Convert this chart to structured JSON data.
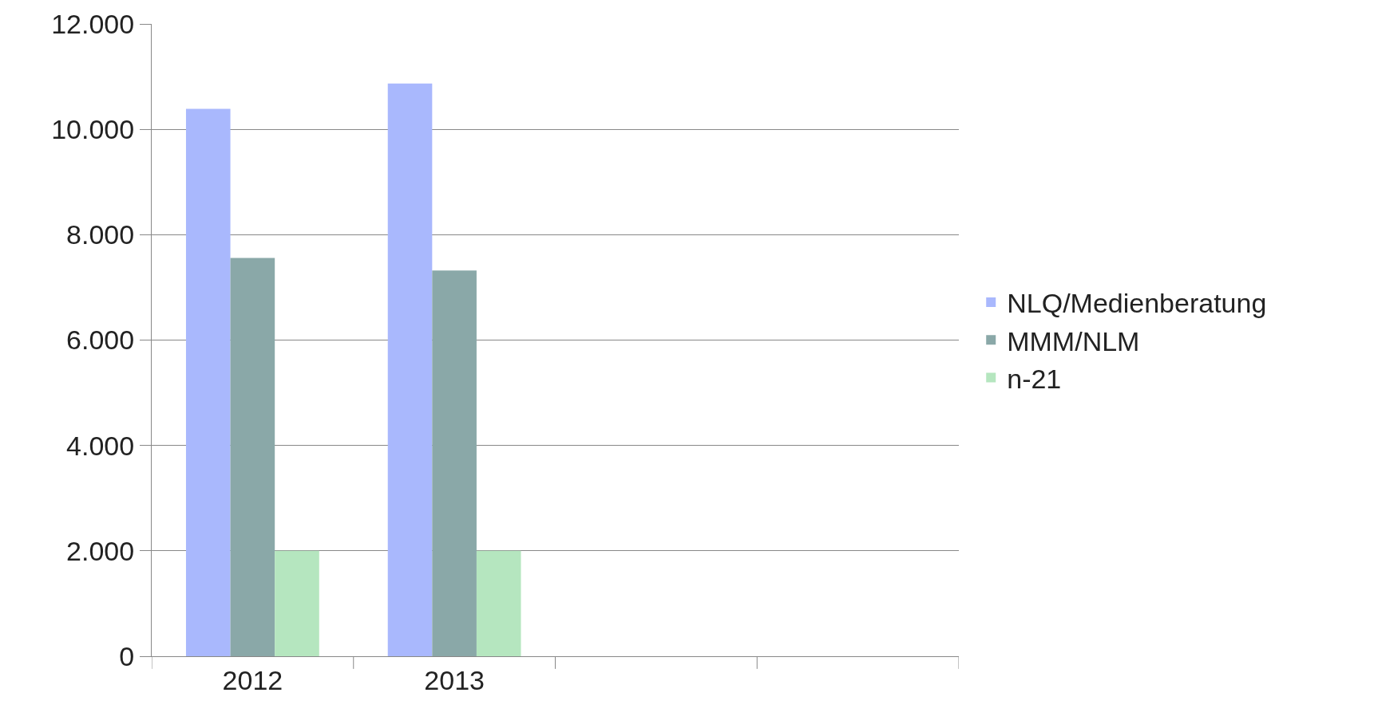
{
  "chart_data": {
    "type": "bar",
    "categories": [
      "2012",
      "2013",
      null,
      null
    ],
    "series": [
      {
        "name": "NLQ/Medienberatung",
        "color": "#a9b8fd",
        "values": [
          10390,
          10870,
          null,
          null
        ]
      },
      {
        "name": "MMM/NLM",
        "color": "#8aa8a8",
        "values": [
          7560,
          7320,
          null,
          null
        ]
      },
      {
        "name": "n-21",
        "color": "#b5e6bf",
        "values": [
          2000,
          2000,
          null,
          null
        ]
      }
    ],
    "ylim": [
      0,
      12000
    ],
    "yticks": [
      {
        "value": 0,
        "label": "0"
      },
      {
        "value": 2000,
        "label": "2.000"
      },
      {
        "value": 4000,
        "label": "4.000"
      },
      {
        "value": 6000,
        "label": "6.000"
      },
      {
        "value": 8000,
        "label": "8.000"
      },
      {
        "value": 10000,
        "label": "10.000"
      },
      {
        "value": 12000,
        "label": "12.000"
      }
    ],
    "grid": "y",
    "legend": "right"
  }
}
